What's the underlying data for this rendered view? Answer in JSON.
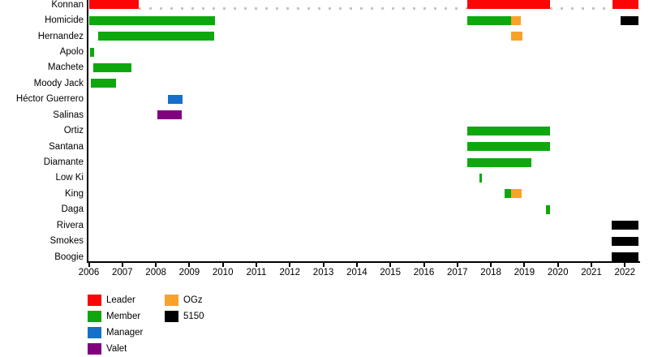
{
  "chart_data": {
    "type": "timeline",
    "title": "",
    "xlabel": "",
    "ylabel": "",
    "axis": {
      "start_year": 2006,
      "end_year": 2022,
      "ticks": [
        2006,
        2007,
        2008,
        2009,
        2010,
        2011,
        2012,
        2013,
        2014,
        2015,
        2016,
        2017,
        2018,
        2019,
        2020,
        2021,
        2022
      ],
      "grid": false
    },
    "legend_position": "bottom-left",
    "colors": {
      "leader": "#fa0606",
      "member": "#0ea80e",
      "manager": "#1470c8",
      "valet": "#800080",
      "ogz": "#f8a22a",
      "five150": "#000000"
    },
    "legend": [
      {
        "label": "Leader",
        "role": "leader",
        "column": 0
      },
      {
        "label": "Member",
        "role": "member",
        "column": 0
      },
      {
        "label": "Manager",
        "role": "manager",
        "column": 0
      },
      {
        "label": "Valet",
        "role": "valet",
        "column": 0
      },
      {
        "label": "OGz",
        "role": "ogz",
        "column": 1
      },
      {
        "label": "5150",
        "role": "five150",
        "column": 1
      }
    ],
    "rows": [
      {
        "label": "Konnan",
        "segments": [
          {
            "start": 2006.0,
            "end": 2007.5,
            "role": "leader"
          },
          {
            "start": 2017.29,
            "end": 2019.76,
            "role": "leader"
          },
          {
            "start": 2021.63,
            "end": 2022.4,
            "role": "leader"
          }
        ],
        "gaps": [
          {
            "start": 2007.5,
            "end": 2017.29
          },
          {
            "start": 2019.76,
            "end": 2021.63
          }
        ]
      },
      {
        "label": "Homicide",
        "segments": [
          {
            "start": 2006.0,
            "end": 2009.76,
            "role": "member"
          },
          {
            "start": 2017.29,
            "end": 2018.6,
            "role": "member"
          },
          {
            "start": 2018.6,
            "end": 2018.9,
            "role": "ogz"
          },
          {
            "start": 2021.87,
            "end": 2022.4,
            "role": "five150"
          }
        ],
        "gaps": []
      },
      {
        "label": "Hernandez",
        "segments": [
          {
            "start": 2006.28,
            "end": 2009.75,
            "role": "member"
          },
          {
            "start": 2018.6,
            "end": 2018.94,
            "role": "ogz"
          }
        ],
        "gaps": []
      },
      {
        "label": "Apolo",
        "segments": [
          {
            "start": 2006.03,
            "end": 2006.15,
            "role": "member"
          }
        ],
        "gaps": []
      },
      {
        "label": "Machete",
        "segments": [
          {
            "start": 2006.13,
            "end": 2007.27,
            "role": "member"
          }
        ],
        "gaps": []
      },
      {
        "label": "Moody Jack",
        "segments": [
          {
            "start": 2006.05,
            "end": 2006.81,
            "role": "member"
          }
        ],
        "gaps": []
      },
      {
        "label": "Héctor Guerrero",
        "segments": [
          {
            "start": 2008.35,
            "end": 2008.8,
            "role": "manager"
          }
        ],
        "gaps": []
      },
      {
        "label": "Salinas",
        "segments": [
          {
            "start": 2008.05,
            "end": 2008.77,
            "role": "valet"
          }
        ],
        "gaps": []
      },
      {
        "label": "Ortiz",
        "segments": [
          {
            "start": 2017.29,
            "end": 2019.76,
            "role": "member"
          }
        ],
        "gaps": []
      },
      {
        "label": "Santana",
        "segments": [
          {
            "start": 2017.29,
            "end": 2019.76,
            "role": "member"
          }
        ],
        "gaps": []
      },
      {
        "label": "Diamante",
        "segments": [
          {
            "start": 2017.29,
            "end": 2019.21,
            "role": "member"
          }
        ],
        "gaps": []
      },
      {
        "label": "Low Ki",
        "segments": [
          {
            "start": 2017.66,
            "end": 2017.74,
            "role": "member"
          }
        ],
        "gaps": []
      },
      {
        "label": "King",
        "segments": [
          {
            "start": 2018.41,
            "end": 2018.6,
            "role": "member"
          },
          {
            "start": 2018.6,
            "end": 2018.92,
            "role": "ogz"
          }
        ],
        "gaps": []
      },
      {
        "label": "Daga",
        "segments": [
          {
            "start": 2019.64,
            "end": 2019.76,
            "role": "member"
          }
        ],
        "gaps": []
      },
      {
        "label": "Rivera",
        "segments": [
          {
            "start": 2021.6,
            "end": 2022.4,
            "role": "five150"
          }
        ],
        "gaps": []
      },
      {
        "label": "Smokes",
        "segments": [
          {
            "start": 2021.6,
            "end": 2022.4,
            "role": "five150"
          }
        ],
        "gaps": []
      },
      {
        "label": "Boogie",
        "segments": [
          {
            "start": 2021.6,
            "end": 2022.4,
            "role": "five150"
          }
        ],
        "gaps": []
      }
    ]
  }
}
